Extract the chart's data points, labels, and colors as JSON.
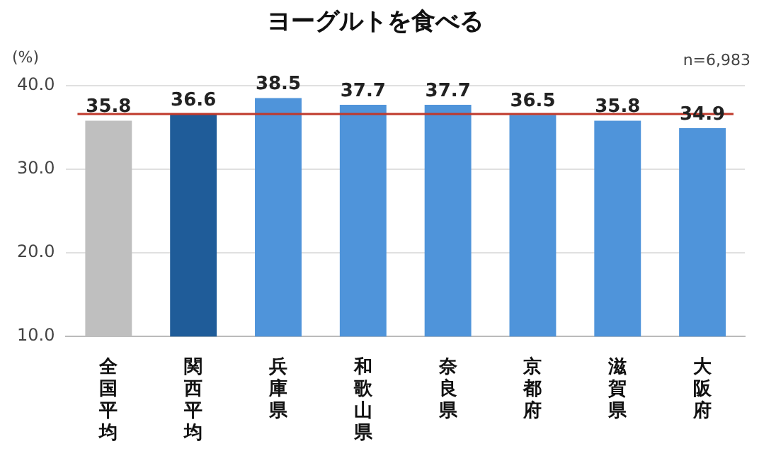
{
  "chart_data": {
    "type": "bar",
    "title": "ヨーグルトを食べる",
    "ylabel": "(%)",
    "categories": [
      "全国平均",
      "関西平均",
      "兵庫県",
      "和歌山県",
      "奈良県",
      "京都府",
      "滋賀県",
      "大阪府"
    ],
    "values": [
      35.8,
      36.6,
      38.5,
      37.7,
      37.7,
      36.5,
      35.8,
      34.9
    ],
    "colors": [
      "#bfbfbf",
      "#1f5c99",
      "#4f94da",
      "#4f94da",
      "#4f94da",
      "#4f94da",
      "#4f94da",
      "#4f94da"
    ],
    "ylim": [
      10,
      40
    ],
    "yticks": [
      {
        "value": 10,
        "label": "10.0"
      },
      {
        "value": 20,
        "label": "20.0"
      },
      {
        "value": 30,
        "label": "30.0"
      },
      {
        "value": 40,
        "label": "40.0"
      }
    ],
    "grid": "y",
    "legend": false,
    "data_labels": true,
    "ref_lines": [
      {
        "axis": "y",
        "value": 36.6,
        "color": "#c0392b"
      }
    ],
    "annotations": [
      "n=6,983"
    ]
  }
}
